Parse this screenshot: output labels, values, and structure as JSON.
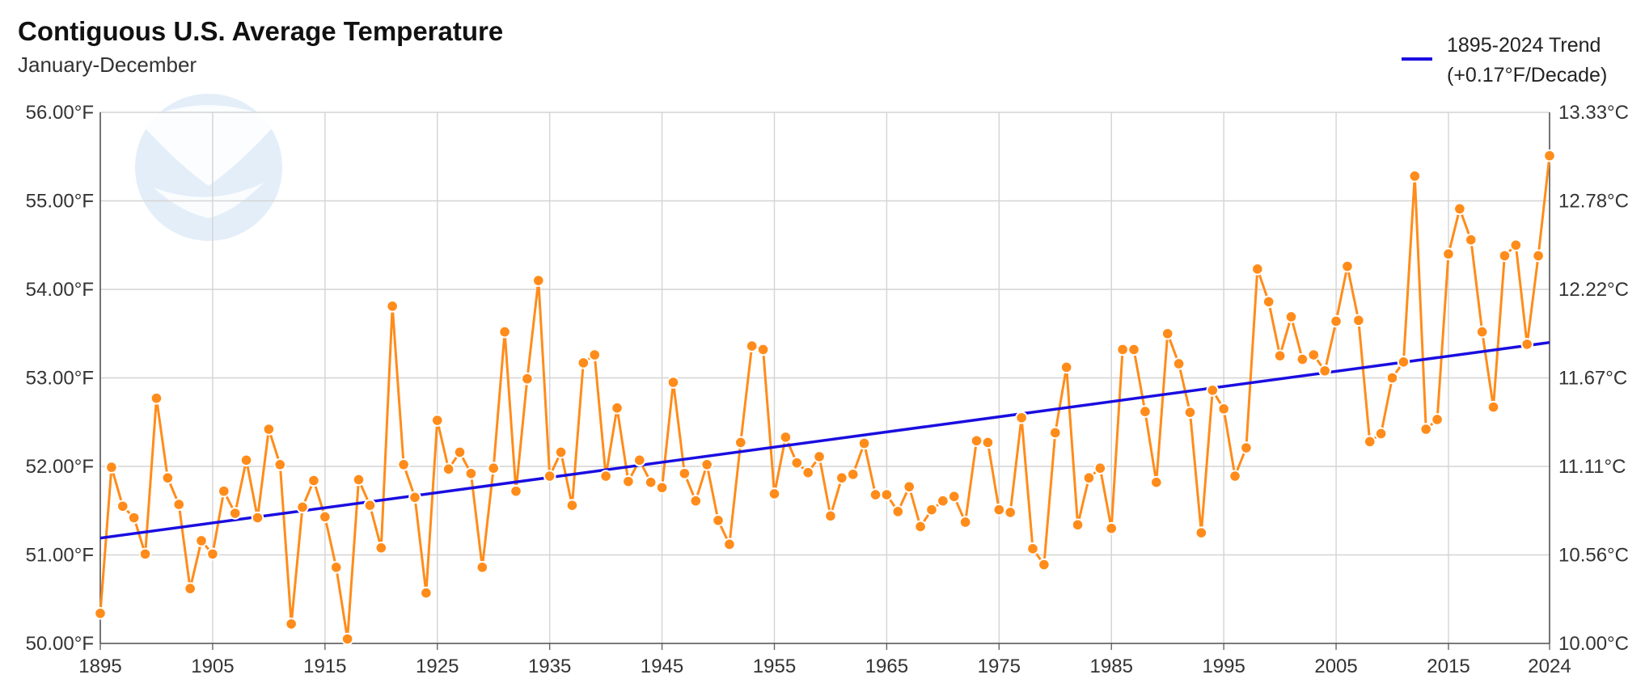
{
  "title": "Contiguous U.S. Average Temperature",
  "subtitle": "January-December",
  "watermark": "NOAA",
  "legend": {
    "line1": "1895-2024 Trend",
    "line2": "(+0.17°F/Decade)"
  },
  "colors": {
    "series": "#ff8c1a",
    "trend": "#1a0ee0",
    "grid": "#d4d4d4",
    "watermark": "#e3eef9"
  },
  "chart_data": {
    "type": "line",
    "title": "Contiguous U.S. Average Temperature",
    "subtitle": "January-December",
    "xlim": [
      1895,
      2024
    ],
    "ylim": [
      50,
      56
    ],
    "x_ticks": [
      1895,
      1905,
      1915,
      1925,
      1935,
      1945,
      1955,
      1965,
      1975,
      1985,
      1995,
      2005,
      2015,
      2024
    ],
    "y_ticks_left": [
      "50.00°F",
      "51.00°F",
      "52.00°F",
      "53.00°F",
      "54.00°F",
      "55.00°F",
      "56.00°F"
    ],
    "y_ticks_right": [
      "10.00°C",
      "10.56°C",
      "11.11°C",
      "11.67°C",
      "12.22°C",
      "12.78°C",
      "13.33°C"
    ],
    "grid": true,
    "legend_position": "top-right",
    "series": [
      {
        "years": [
          1895,
          1896,
          1897,
          1898,
          1899,
          1900,
          1901,
          1902,
          1903,
          1904,
          1905,
          1906,
          1907,
          1908,
          1909,
          1910,
          1911,
          1912,
          1913,
          1914,
          1915,
          1916,
          1917,
          1918,
          1919,
          1920,
          1921,
          1922,
          1923,
          1924,
          1925,
          1926,
          1927,
          1928,
          1929,
          1930,
          1931,
          1932,
          1933,
          1934,
          1935,
          1936,
          1937,
          1938,
          1939,
          1940,
          1941,
          1942,
          1943,
          1944,
          1945,
          1946,
          1947,
          1948,
          1949,
          1950,
          1951,
          1952,
          1953,
          1954,
          1955,
          1956,
          1957,
          1958,
          1959,
          1960,
          1961,
          1962,
          1963,
          1964,
          1965,
          1966,
          1967,
          1968,
          1969,
          1970,
          1971,
          1972,
          1973,
          1974,
          1975,
          1976,
          1977,
          1978,
          1979,
          1980,
          1981,
          1982,
          1983,
          1984,
          1985,
          1986,
          1987,
          1988,
          1989,
          1990,
          1991,
          1992,
          1993,
          1994,
          1995,
          1996,
          1997,
          1998,
          1999,
          2000,
          2001,
          2002,
          2003,
          2004,
          2005,
          2006,
          2007,
          2008,
          2009,
          2010,
          2011,
          2012,
          2013,
          2014,
          2015,
          2016,
          2017,
          2018,
          2019,
          2020,
          2021,
          2022,
          2023,
          2024
        ],
        "values": [
          50.34,
          51.99,
          51.55,
          51.42,
          51.01,
          52.77,
          51.87,
          51.57,
          50.62,
          51.16,
          51.01,
          51.72,
          51.47,
          52.07,
          51.42,
          52.42,
          52.02,
          50.22,
          51.54,
          51.84,
          51.43,
          50.86,
          50.05,
          51.85,
          51.56,
          51.08,
          53.81,
          52.02,
          51.65,
          50.57,
          52.52,
          51.97,
          52.16,
          51.92,
          50.86,
          51.98,
          53.52,
          51.72,
          52.99,
          54.1,
          51.89,
          52.16,
          51.56,
          53.17,
          53.26,
          51.89,
          52.66,
          51.83,
          52.07,
          51.82,
          51.76,
          52.95,
          51.92,
          51.61,
          52.02,
          51.39,
          51.12,
          52.27,
          53.36,
          53.32,
          51.69,
          52.33,
          52.04,
          51.93,
          52.11,
          51.44,
          51.87,
          51.91,
          52.26,
          51.68,
          51.68,
          51.49,
          51.77,
          51.32,
          51.51,
          51.61,
          51.66,
          51.37,
          52.29,
          52.27,
          51.51,
          51.48,
          52.55,
          51.07,
          50.89,
          52.38,
          53.12,
          51.34,
          51.87,
          51.98,
          51.3,
          53.32,
          53.32,
          52.62,
          51.82,
          53.5,
          53.16,
          52.61,
          51.25,
          52.86,
          52.65,
          51.89,
          52.21,
          54.23,
          53.86,
          53.25,
          53.69,
          53.21,
          53.26,
          53.08,
          53.64,
          54.26,
          53.65,
          52.28,
          52.37,
          53.0,
          53.18,
          55.28,
          52.42,
          52.53,
          54.4,
          54.91,
          54.56,
          53.52,
          52.67,
          54.38,
          54.5,
          53.38,
          54.38,
          55.51
        ]
      }
    ],
    "trend": {
      "name": "1895-2024 Trend",
      "rate_f_per_decade": 0.17,
      "start": [
        1895,
        51.19
      ],
      "end": [
        2024,
        53.4
      ]
    }
  }
}
